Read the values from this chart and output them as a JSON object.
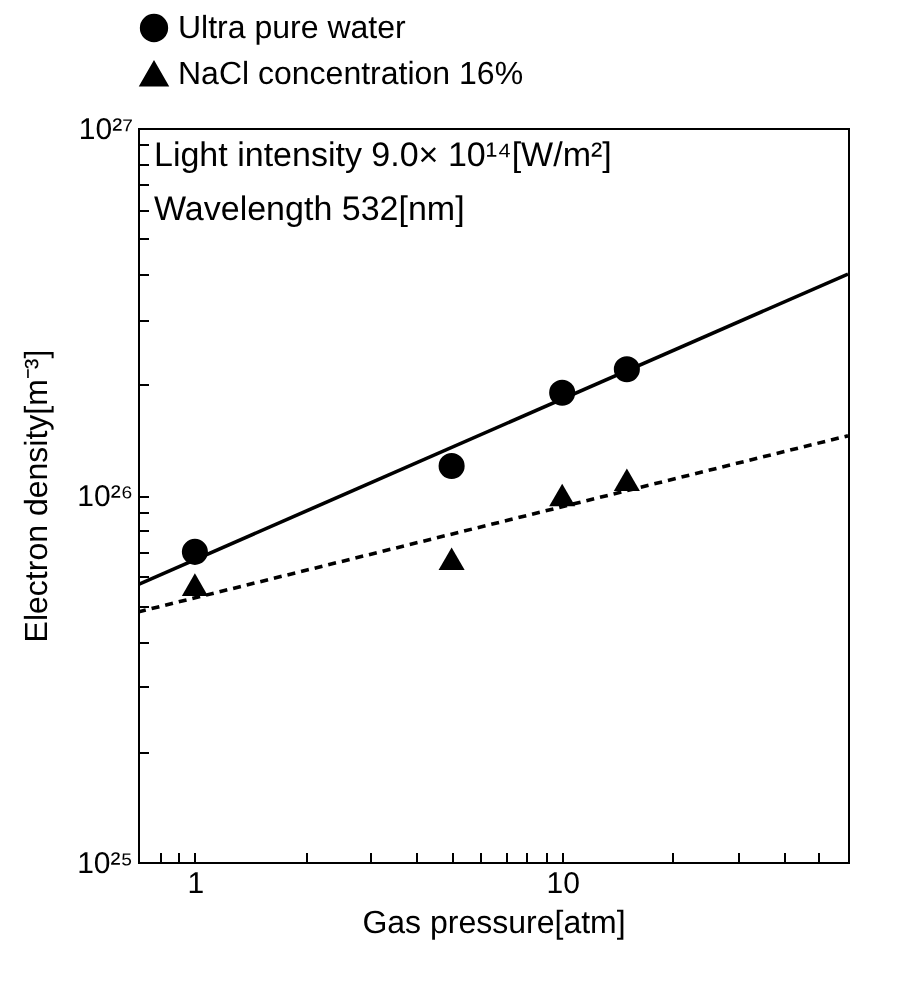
{
  "chart_data": {
    "type": "scatter",
    "xlabel": "Gas pressure[atm]",
    "ylabel": "Electron density[m⁻³]",
    "log": "xy",
    "xlim": [
      0.7,
      60
    ],
    "ylim": [
      1e+25,
      1e+27
    ],
    "xticks": [
      {
        "value": 0.8,
        "label": null
      },
      {
        "value": 0.9,
        "label": null
      },
      1,
      {
        "value": 2,
        "label": null
      },
      {
        "value": 3,
        "label": null
      },
      {
        "value": 4,
        "label": null
      },
      {
        "value": 5,
        "label": null
      },
      {
        "value": 6,
        "label": null
      },
      {
        "value": 7,
        "label": null
      },
      {
        "value": 8,
        "label": null
      },
      {
        "value": 9,
        "label": null
      },
      10,
      {
        "value": 20,
        "label": null
      },
      {
        "value": 30,
        "label": null
      },
      {
        "value": 40,
        "label": null
      },
      {
        "value": 50,
        "label": null
      }
    ],
    "yticks": [
      {
        "value": 1e+25,
        "label": "10²⁵"
      },
      {
        "value": 2e+25,
        "label": null
      },
      {
        "value": 3e+25,
        "label": null
      },
      {
        "value": 4e+25,
        "label": null
      },
      {
        "value": 5e+25,
        "label": null
      },
      {
        "value": 6e+25,
        "label": null
      },
      {
        "value": 7e+25,
        "label": null
      },
      {
        "value": 8e+25,
        "label": null
      },
      {
        "value": 9e+25,
        "label": null
      },
      {
        "value": 1e+26,
        "label": "10²⁶"
      },
      {
        "value": 2e+26,
        "label": null
      },
      {
        "value": 3e+26,
        "label": null
      },
      {
        "value": 4e+26,
        "label": null
      },
      {
        "value": 5e+26,
        "label": null
      },
      {
        "value": 6e+26,
        "label": null
      },
      {
        "value": 7e+26,
        "label": null
      },
      {
        "value": 8e+26,
        "label": null
      },
      {
        "value": 9e+26,
        "label": null
      },
      {
        "value": 1e+27,
        "label": "10²⁷"
      }
    ],
    "grid": false,
    "legend": "top",
    "annotations": [
      "Light intensity 9.0× 10¹⁴[W/m²]",
      "Wavelength 532[nm]"
    ],
    "series": [
      {
        "name": "Ultra pure water",
        "color": "#000000",
        "marker": "circle",
        "x": [
          1,
          5,
          10,
          15
        ],
        "values": [
          7e+25,
          1.2e+26,
          1.9e+26,
          2.2e+26
        ]
      },
      {
        "name": "NaCl concentration 16%",
        "color": "#000000",
        "marker": "triangle",
        "x": [
          1,
          5,
          10,
          15
        ],
        "values": [
          5.7e+25,
          6.7e+25,
          1e+26,
          1.1e+26
        ]
      },
      {
        "type": "line",
        "color": "#000000",
        "line_style": "solid",
        "x": [
          0.7,
          60
        ],
        "values": [
          5.7e+25,
          4e+26
        ]
      },
      {
        "type": "line",
        "color": "#000000",
        "line_style": "dashed",
        "x": [
          0.7,
          60
        ],
        "values": [
          4.8e+25,
          1.45e+26
        ]
      }
    ]
  }
}
